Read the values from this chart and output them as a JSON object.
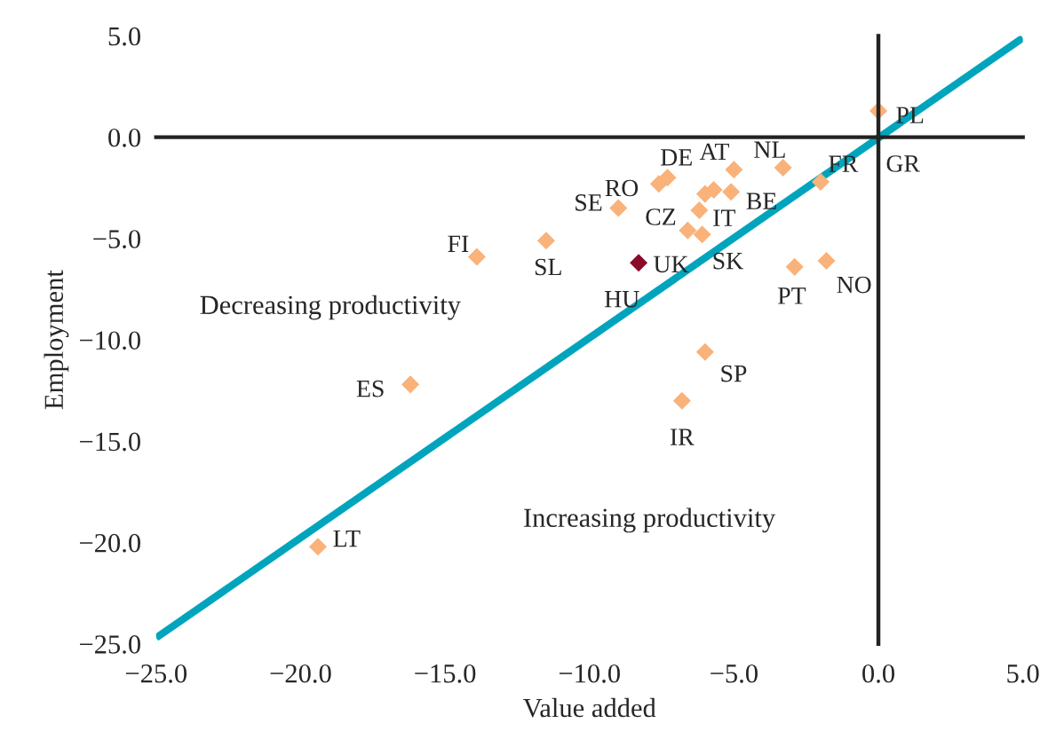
{
  "chart_data": {
    "type": "scatter",
    "xlabel": "Value added",
    "ylabel": "Employment",
    "xlim": [
      -25,
      5
    ],
    "ylim": [
      -25,
      5
    ],
    "xticks": [
      {
        "value": -25,
        "label": "−25.0"
      },
      {
        "value": -20,
        "label": "−20.0"
      },
      {
        "value": -15,
        "label": "−15.0"
      },
      {
        "value": -10,
        "label": "−10.0"
      },
      {
        "value": -5,
        "label": "−5.0"
      },
      {
        "value": 0,
        "label": "0.0"
      },
      {
        "value": 5,
        "label": "5.0"
      }
    ],
    "yticks": [
      {
        "value": -25,
        "label": "−25.0"
      },
      {
        "value": -20,
        "label": "−20.0"
      },
      {
        "value": -15,
        "label": "−15.0"
      },
      {
        "value": -10,
        "label": "−10.0"
      },
      {
        "value": -5,
        "label": "−5.0"
      },
      {
        "value": 0,
        "label": "0.0"
      },
      {
        "value": 5,
        "label": "5.0"
      }
    ],
    "marker": "diamond",
    "series": [
      {
        "x": [
          0.0,
          -3.3,
          -2.0,
          -7.3,
          -7.6,
          -5.0,
          -6.0,
          -5.7,
          -5.1,
          -6.2,
          -6.6,
          -6.1,
          -9.0,
          -11.5,
          -8.3,
          -13.9,
          -2.9,
          -1.8,
          -6.0,
          -6.8,
          -16.2,
          -19.4
        ],
        "values": [
          1.3,
          -1.5,
          -2.2,
          -2.0,
          -2.3,
          -1.6,
          -2.8,
          -2.6,
          -2.7,
          -3.6,
          -4.6,
          -4.8,
          -3.5,
          -5.1,
          -6.2,
          -5.9,
          -6.4,
          -6.1,
          -10.6,
          -13.0,
          -12.2,
          -20.2
        ],
        "colors": [
          "#f9b27a",
          "#f9b27a",
          "#f9b27a",
          "#f9b27a",
          "#f9b27a",
          "#f9b27a",
          "#f9b27a",
          "#f9b27a",
          "#f9b27a",
          "#f9b27a",
          "#f9b27a",
          "#f9b27a",
          "#f9b27a",
          "#f9b27a",
          "#8b0a2a",
          "#f9b27a",
          "#f9b27a",
          "#f9b27a",
          "#f9b27a",
          "#f9b27a",
          "#f9b27a",
          "#f9b27a"
        ]
      },
      {
        "type": "line",
        "marker": "none",
        "color": "#00a5bd",
        "x": [
          -25,
          5
        ],
        "values": [
          -24.7,
          4.9
        ]
      }
    ],
    "annotations": [
      {
        "text": "PL",
        "x": 0.0,
        "y": 1.3
      },
      {
        "text": "NL",
        "x": -3.3,
        "y": -1.5
      },
      {
        "text": "FR",
        "x": -2.0,
        "y": -2.2
      },
      {
        "text": "GR",
        "x": 0.0,
        "y": 0.0
      },
      {
        "text": "DE",
        "x": -7.3,
        "y": -2.0
      },
      {
        "text": "RO",
        "x": -7.6,
        "y": -2.3
      },
      {
        "text": "AT",
        "x": -5.0,
        "y": -1.6
      },
      {
        "text": "IT",
        "x": -6.0,
        "y": -2.8
      },
      {
        "text": "BE",
        "x": -5.1,
        "y": -2.7
      },
      {
        "text": "CZ",
        "x": -6.2,
        "y": -3.6
      },
      {
        "text": "UK",
        "x": -6.6,
        "y": -4.6
      },
      {
        "text": "SK",
        "x": -6.1,
        "y": -4.8
      },
      {
        "text": "SE",
        "x": -9.0,
        "y": -3.5
      },
      {
        "text": "SL",
        "x": -11.5,
        "y": -5.1
      },
      {
        "text": "HU",
        "x": -8.3,
        "y": -6.2
      },
      {
        "text": "FI",
        "x": -13.9,
        "y": -5.9
      },
      {
        "text": "PT",
        "x": -2.9,
        "y": -6.4
      },
      {
        "text": "NO",
        "x": -1.8,
        "y": -6.1
      },
      {
        "text": "SP",
        "x": -6.0,
        "y": -10.6
      },
      {
        "text": "IR",
        "x": -6.8,
        "y": -13.0
      },
      {
        "text": "ES",
        "x": -16.2,
        "y": -12.2
      },
      {
        "text": "LT",
        "x": -19.4,
        "y": -20.2
      },
      "Decreasing productivity",
      "Increasing productivity"
    ]
  }
}
